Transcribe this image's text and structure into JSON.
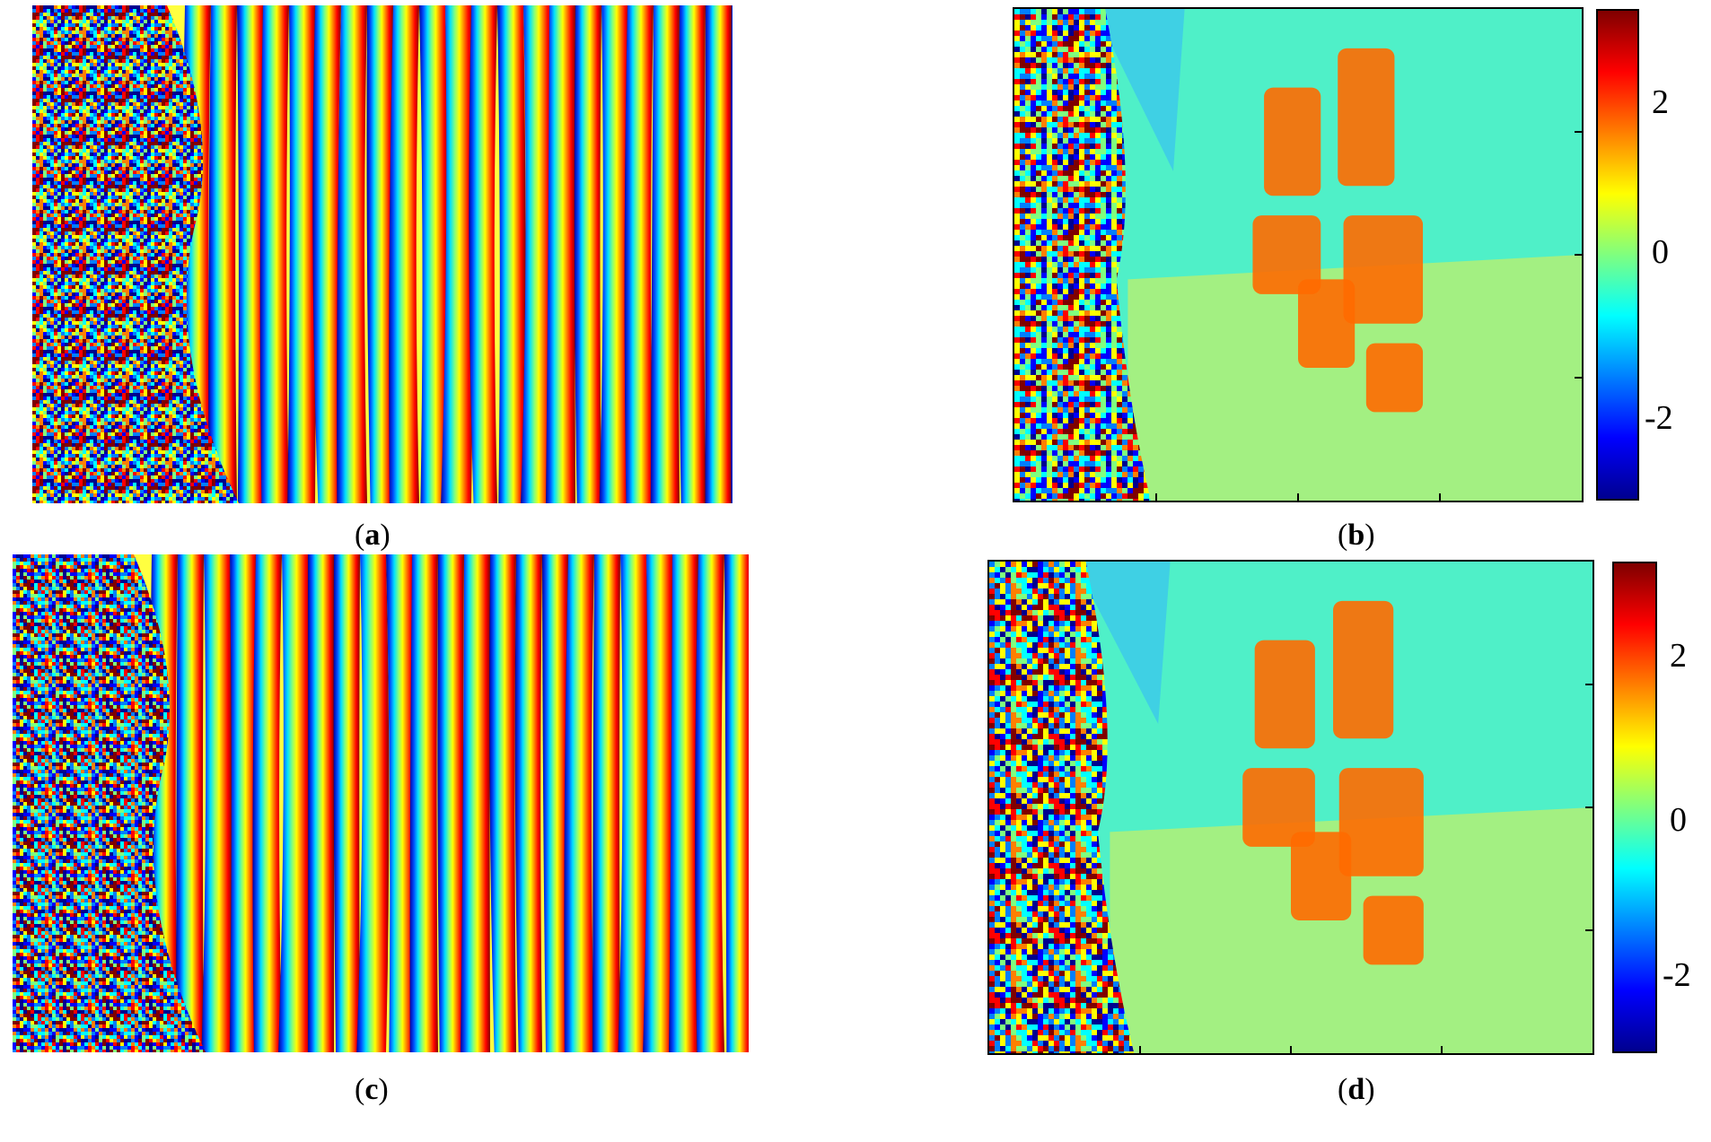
{
  "figure": {
    "panels": [
      {
        "id": "a",
        "label_open": "(",
        "label_letter": "a",
        "label_close": ")",
        "kind": "wrapped-phase-fringes",
        "frame": false
      },
      {
        "id": "b",
        "label_open": "(",
        "label_letter": "b",
        "label_close": ")",
        "kind": "phase-map",
        "frame": true
      },
      {
        "id": "c",
        "label_open": "(",
        "label_letter": "c",
        "label_close": ")",
        "kind": "wrapped-phase-fringes",
        "frame": false
      },
      {
        "id": "d",
        "label_open": "(",
        "label_letter": "d",
        "label_close": ")",
        "kind": "phase-map",
        "frame": true
      }
    ],
    "colorbars": [
      {
        "panel": "b",
        "ticks": [
          "2",
          "0",
          "-2"
        ],
        "range": [
          -3.14,
          3.14
        ],
        "tick_values": [
          2,
          0,
          -2
        ]
      },
      {
        "panel": "d",
        "ticks": [
          "2",
          "0",
          "-2"
        ],
        "range": [
          -3.14,
          3.14
        ],
        "tick_values": [
          2,
          0,
          -2
        ]
      }
    ],
    "colormap": [
      "#00008f",
      "#0000ff",
      "#007fff",
      "#00ffff",
      "#7fff7f",
      "#ffff00",
      "#ff7f00",
      "#ff0000",
      "#7f0000"
    ]
  }
}
